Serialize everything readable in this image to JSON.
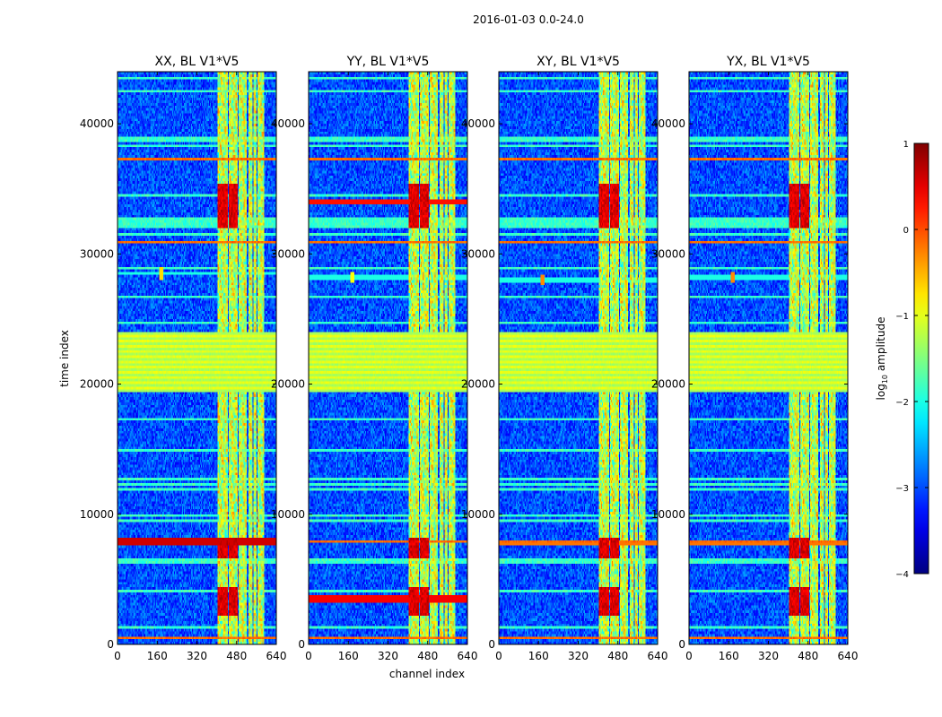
{
  "figure": {
    "suptitle": "2016-01-03 0.0-24.0",
    "xlabel": "channel index",
    "ylabel": "time index"
  },
  "chart_data": {
    "type": "heatmap",
    "title": "2016-01-03 0.0-24.0",
    "xlabel": "channel index",
    "ylabel": "time index",
    "xlim": [
      0,
      640
    ],
    "ylim": [
      0,
      44000
    ],
    "xticks": [
      0,
      160,
      320,
      480,
      640
    ],
    "yticks": [
      0,
      10000,
      20000,
      30000,
      40000
    ],
    "panels": [
      {
        "title": "XX, BL V1*V5",
        "rfi_events": [
          {
            "t": 7900,
            "half_width": 250,
            "level": 0.6
          },
          {
            "t": 28500,
            "blip_channel": 175,
            "level": -0.7
          }
        ]
      },
      {
        "title": "YY, BL V1*V5",
        "rfi_events": [
          {
            "t": 34000,
            "half_width": 250,
            "level": 0.3
          },
          {
            "t": 3500,
            "half_width": 250,
            "level": 0.4
          },
          {
            "t": 28200,
            "blip_channel": 175,
            "level": -0.9
          }
        ]
      },
      {
        "title": "XY, BL V1*V5",
        "rfi_events": [
          {
            "t": 7800,
            "half_width": 200,
            "level": -0.2
          },
          {
            "t": 28000,
            "blip_channel": 175,
            "level": -0.3
          }
        ]
      },
      {
        "title": "YX, BL V1*V5",
        "rfi_events": [
          {
            "t": 7800,
            "half_width": 200,
            "level": -0.2
          },
          {
            "t": 28200,
            "blip_channel": 175,
            "level": -0.3
          }
        ]
      }
    ],
    "background_level": -3.0,
    "strong_channel_bands": [
      [
        405,
        445
      ],
      [
        447,
        485
      ],
      [
        490,
        520
      ],
      [
        530,
        545
      ],
      [
        550,
        560
      ],
      [
        565,
        590
      ]
    ],
    "horizontal_flag_band": [
      19500,
      24000
    ],
    "hot_rows": [
      500,
      7900,
      30800,
      37200
    ],
    "colorbar": {
      "label_prefix": "log",
      "label_sub": "10",
      "label_suffix": " amplitude",
      "vmin": -4,
      "vmax": 1,
      "ticks": [
        "1",
        "0",
        "−1",
        "−2",
        "−3",
        "−4"
      ],
      "colormap": "jet"
    }
  }
}
